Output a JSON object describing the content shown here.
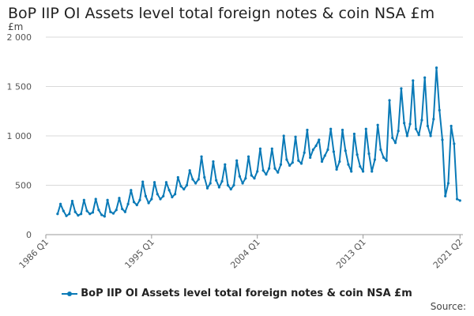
{
  "chart_data": {
    "type": "line",
    "title": "BoP IIP OI Assets level total foreign notes & coin NSA £m",
    "ylabel": "£m",
    "ylim": [
      0,
      2000
    ],
    "yticks": [
      0,
      500,
      1000,
      1500,
      2000
    ],
    "ytick_labels": [
      "0",
      "500",
      "1 000",
      "1 500",
      "2 000"
    ],
    "xlim": [
      1986,
      2021.5
    ],
    "xticks": [
      1986,
      1995,
      2004,
      2013,
      2021.25
    ],
    "xtick_labels": [
      "1986 Q1",
      "1995 Q1",
      "2004 Q1",
      "2013 Q1",
      "2021 Q2"
    ],
    "grid": true,
    "legend_position": "bottom",
    "series": [
      {
        "name": "BoP IIP OI Assets level total foreign notes & coin NSA £m",
        "color": "#0a7ab7",
        "x": [
          1987.0,
          1987.25,
          1987.5,
          1987.75,
          1988.0,
          1988.25,
          1988.5,
          1988.75,
          1989.0,
          1989.25,
          1989.5,
          1989.75,
          1990.0,
          1990.25,
          1990.5,
          1990.75,
          1991.0,
          1991.25,
          1991.5,
          1991.75,
          1992.0,
          1992.25,
          1992.5,
          1992.75,
          1993.0,
          1993.25,
          1993.5,
          1993.75,
          1994.0,
          1994.25,
          1994.5,
          1994.75,
          1995.0,
          1995.25,
          1995.5,
          1995.75,
          1996.0,
          1996.25,
          1996.5,
          1996.75,
          1997.0,
          1997.25,
          1997.5,
          1997.75,
          1998.0,
          1998.25,
          1998.5,
          1998.75,
          1999.0,
          1999.25,
          1999.5,
          1999.75,
          2000.0,
          2000.25,
          2000.5,
          2000.75,
          2001.0,
          2001.25,
          2001.5,
          2001.75,
          2002.0,
          2002.25,
          2002.5,
          2002.75,
          2003.0,
          2003.25,
          2003.5,
          2003.75,
          2004.0,
          2004.25,
          2004.5,
          2004.75,
          2005.0,
          2005.25,
          2005.5,
          2005.75,
          2006.0,
          2006.25,
          2006.5,
          2006.75,
          2007.0,
          2007.25,
          2007.5,
          2007.75,
          2008.0,
          2008.25,
          2008.5,
          2008.75,
          2009.0,
          2009.25,
          2009.5,
          2009.75,
          2010.0,
          2010.25,
          2010.5,
          2010.75,
          2011.0,
          2011.25,
          2011.5,
          2011.75,
          2012.0,
          2012.25,
          2012.5,
          2012.75,
          2013.0,
          2013.25,
          2013.5,
          2013.75,
          2014.0,
          2014.25,
          2014.5,
          2014.75,
          2015.0,
          2015.25,
          2015.5,
          2015.75,
          2016.0,
          2016.25,
          2016.5,
          2016.75,
          2017.0,
          2017.25,
          2017.5,
          2017.75,
          2018.0,
          2018.25,
          2018.5,
          2018.75,
          2019.0,
          2019.25,
          2019.5,
          2019.75,
          2020.0,
          2020.25,
          2020.5,
          2020.75,
          2021.0,
          2021.25
        ],
        "values": [
          210,
          310,
          240,
          190,
          210,
          340,
          230,
          195,
          210,
          350,
          240,
          210,
          225,
          360,
          250,
          200,
          185,
          350,
          230,
          215,
          250,
          370,
          260,
          230,
          310,
          450,
          330,
          300,
          350,
          535,
          390,
          320,
          360,
          530,
          410,
          360,
          390,
          530,
          450,
          380,
          410,
          580,
          490,
          460,
          500,
          650,
          560,
          520,
          560,
          790,
          580,
          470,
          520,
          740,
          550,
          480,
          540,
          710,
          500,
          460,
          500,
          750,
          590,
          520,
          570,
          790,
          600,
          570,
          640,
          870,
          650,
          610,
          670,
          870,
          670,
          630,
          710,
          1000,
          760,
          700,
          730,
          990,
          750,
          720,
          830,
          1060,
          780,
          860,
          900,
          960,
          740,
          800,
          860,
          1070,
          840,
          660,
          740,
          1060,
          850,
          710,
          640,
          1020,
          810,
          690,
          640,
          1070,
          820,
          640,
          760,
          1110,
          860,
          780,
          750,
          1360,
          980,
          930,
          1050,
          1480,
          1130,
          1000,
          1120,
          1560,
          1070,
          1010,
          1160,
          1590,
          1100,
          1000,
          1170,
          1690,
          1260,
          960,
          390,
          520,
          1100,
          920,
          360,
          345
        ]
      }
    ],
    "legend_label": "BoP IIP OI Assets level total foreign notes & coin NSA £m",
    "source_label": "Source:"
  }
}
